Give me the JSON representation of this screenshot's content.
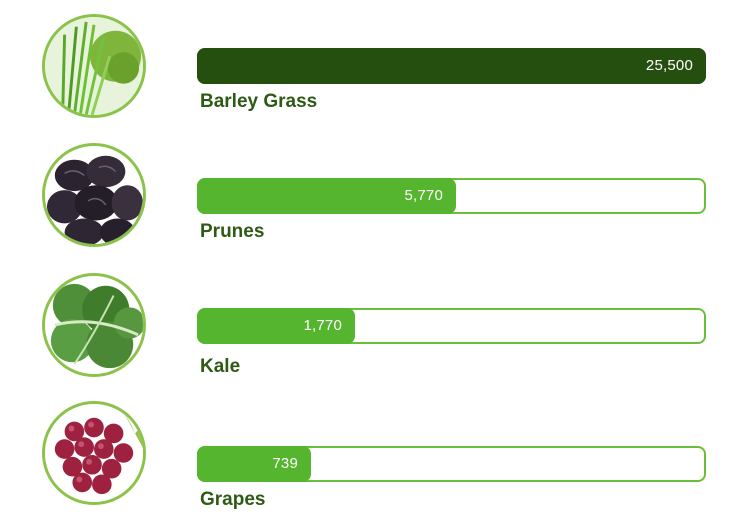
{
  "chart_data": {
    "type": "bar",
    "categories": [
      "Barley Grass",
      "Prunes",
      "Kale",
      "Grapes"
    ],
    "values": [
      25500,
      5770,
      1770,
      739
    ],
    "value_labels": [
      "25,500",
      "5,770",
      "1,770",
      "739"
    ],
    "xlim": [
      0,
      25500
    ],
    "grid": false
  },
  "images": [
    {
      "icon": "barley-grass-image"
    },
    {
      "icon": "prunes-image"
    },
    {
      "icon": "kale-image"
    },
    {
      "icon": "grapes-image"
    }
  ],
  "colors": {
    "highlight_bar": "#244f0e",
    "bar": "#55b52e",
    "track_border": "#6abf3a",
    "label": "#2e5a16",
    "thumb_border": "#8bc34a"
  }
}
